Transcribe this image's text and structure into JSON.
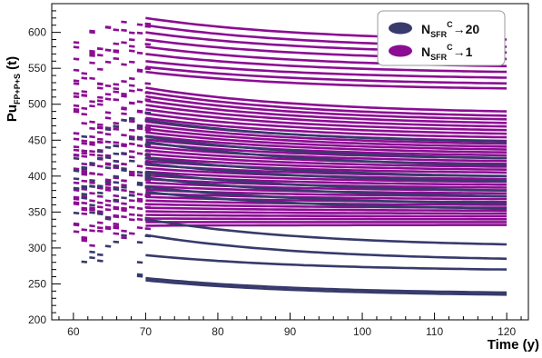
{
  "chart_data": {
    "type": "scatter",
    "title": "",
    "xlabel": "Time (y)",
    "ylabel": {
      "main": "Pu",
      "sub": "FP+P+S",
      "suffix": " (t)"
    },
    "xlim": [
      57,
      123
    ],
    "ylim": [
      200,
      640
    ],
    "x_ticks": [
      60,
      70,
      80,
      90,
      100,
      110,
      120
    ],
    "y_ticks": [
      200,
      250,
      300,
      350,
      400,
      450,
      500,
      550,
      600
    ],
    "grid": false,
    "legend_position": "top-right",
    "legend": [
      {
        "base": "N",
        "sub": "SFR",
        "sup": "C",
        "arrow": "→",
        "value": "20",
        "color": "#373a6b"
      },
      {
        "base": "N",
        "sub": "SFR",
        "sup": "C",
        "arrow": "→",
        "value": "1",
        "color": "#8b0d93"
      }
    ],
    "series": [
      {
        "color": "#8b0d93",
        "trajectories": [
          {
            "y70": 620,
            "y120": 590
          },
          {
            "y70": 610,
            "y120": 580
          },
          {
            "y70": 600,
            "y120": 572
          },
          {
            "y70": 590,
            "y120": 563
          },
          {
            "y70": 580,
            "y120": 553
          },
          {
            "y70": 570,
            "y120": 545
          },
          {
            "y70": 560,
            "y120": 537
          },
          {
            "y70": 552,
            "y120": 529
          },
          {
            "y70": 545,
            "y120": 522
          },
          {
            "y70": 523,
            "y120": 490
          },
          {
            "y70": 517,
            "y120": 484
          },
          {
            "y70": 511,
            "y120": 479
          },
          {
            "y70": 505,
            "y120": 474
          },
          {
            "y70": 499,
            "y120": 469
          },
          {
            "y70": 493,
            "y120": 464
          },
          {
            "y70": 487,
            "y120": 459
          },
          {
            "y70": 481,
            "y120": 454
          },
          {
            "y70": 476,
            "y120": 449
          },
          {
            "y70": 471,
            "y120": 445
          },
          {
            "y70": 466,
            "y120": 441
          },
          {
            "y70": 461,
            "y120": 437
          },
          {
            "y70": 456,
            "y120": 433
          },
          {
            "y70": 451,
            "y120": 429
          },
          {
            "y70": 446,
            "y120": 425
          },
          {
            "y70": 441,
            "y120": 421
          },
          {
            "y70": 436,
            "y120": 417
          },
          {
            "y70": 431,
            "y120": 413
          },
          {
            "y70": 426,
            "y120": 409
          },
          {
            "y70": 421,
            "y120": 405
          },
          {
            "y70": 416,
            "y120": 400
          },
          {
            "y70": 411,
            "y120": 396
          },
          {
            "y70": 406,
            "y120": 392
          },
          {
            "y70": 401,
            "y120": 388
          },
          {
            "y70": 396,
            "y120": 384
          },
          {
            "y70": 391,
            "y120": 380
          },
          {
            "y70": 386,
            "y120": 376
          },
          {
            "y70": 381,
            "y120": 372
          },
          {
            "y70": 376,
            "y120": 368
          },
          {
            "y70": 371,
            "y120": 364
          },
          {
            "y70": 366,
            "y120": 360
          },
          {
            "y70": 361,
            "y120": 356
          },
          {
            "y70": 356,
            "y120": 352
          },
          {
            "y70": 351,
            "y120": 348
          },
          {
            "y70": 346,
            "y120": 344
          },
          {
            "y70": 341,
            "y120": 340
          },
          {
            "y70": 336,
            "y120": 336
          },
          {
            "y70": 331,
            "y120": 332
          }
        ]
      },
      {
        "color": "#373a6b",
        "trajectories": [
          {
            "y70": 478,
            "y120": 448
          },
          {
            "y70": 455,
            "y120": 425
          },
          {
            "y70": 448,
            "y120": 415
          },
          {
            "y70": 425,
            "y120": 400
          },
          {
            "y70": 418,
            "y120": 393
          },
          {
            "y70": 405,
            "y120": 380
          },
          {
            "y70": 398,
            "y120": 372
          },
          {
            "y70": 385,
            "y120": 362
          },
          {
            "y70": 378,
            "y120": 355
          },
          {
            "y70": 340,
            "y120": 305
          },
          {
            "y70": 318,
            "y120": 285
          },
          {
            "y70": 290,
            "y120": 270
          },
          {
            "y70": 258,
            "y120": 238
          },
          {
            "y70": 255,
            "y120": 235
          }
        ]
      }
    ]
  }
}
